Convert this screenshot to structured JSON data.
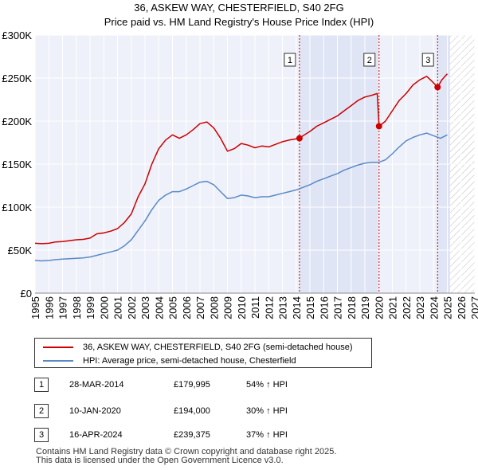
{
  "chart_data": {
    "type": "line",
    "title": "36, ASKEW WAY, CHESTERFIELD, S40 2FG",
    "subtitle": "Price paid vs. HM Land Registry's House Price Index (HPI)",
    "xlim": [
      1995,
      2027
    ],
    "ylim": [
      0,
      300000
    ],
    "x_ticks": [
      "1995",
      "1996",
      "1997",
      "1998",
      "1999",
      "2000",
      "2001",
      "2002",
      "2003",
      "2004",
      "2005",
      "2006",
      "2007",
      "2008",
      "2009",
      "2010",
      "2011",
      "2012",
      "2013",
      "2014",
      "2015",
      "2016",
      "2017",
      "2018",
      "2019",
      "2020",
      "2021",
      "2022",
      "2023",
      "2024",
      "2025",
      "2026",
      "2027"
    ],
    "y_ticks": [
      {
        "value": 0,
        "label": "£0"
      },
      {
        "value": 50000,
        "label": "£50K"
      },
      {
        "value": 100000,
        "label": "£100K"
      },
      {
        "value": 150000,
        "label": "£150K"
      },
      {
        "value": 200000,
        "label": "£200K"
      },
      {
        "value": 250000,
        "label": "£250K"
      },
      {
        "value": 300000,
        "label": "£300K"
      }
    ],
    "grid": true,
    "data_end_year": 2025.2,
    "shaded_ranges": [
      [
        2014.24,
        2020.03
      ],
      [
        2024.29,
        2025.2
      ]
    ],
    "series": [
      {
        "name": "36, ASKEW WAY, CHESTERFIELD, S40 2FG (semi-detached house)",
        "color": "#cc0000",
        "x": [
          1995.0,
          1995.5,
          1996.0,
          1996.5,
          1997.0,
          1997.5,
          1998.0,
          1998.5,
          1999.0,
          1999.5,
          2000.0,
          2000.5,
          2001.0,
          2001.5,
          2002.0,
          2002.5,
          2003.0,
          2003.5,
          2004.0,
          2004.5,
          2005.0,
          2005.5,
          2006.0,
          2006.5,
          2007.0,
          2007.5,
          2008.0,
          2008.5,
          2009.0,
          2009.5,
          2010.0,
          2010.5,
          2011.0,
          2011.5,
          2012.0,
          2012.5,
          2013.0,
          2013.5,
          2014.24,
          2014.5,
          2015.0,
          2015.5,
          2016.0,
          2016.5,
          2017.0,
          2017.5,
          2018.0,
          2018.5,
          2019.0,
          2019.5,
          2019.9,
          2020.03,
          2020.5,
          2021.0,
          2021.5,
          2022.0,
          2022.5,
          2023.0,
          2023.5,
          2023.9,
          2024.29,
          2024.6,
          2025.0
        ],
        "values": [
          58000,
          57500,
          58000,
          59500,
          60000,
          61000,
          62000,
          62500,
          64000,
          69000,
          70000,
          72000,
          75000,
          82000,
          92000,
          112000,
          127000,
          150000,
          168000,
          178000,
          184000,
          180000,
          184000,
          190000,
          197000,
          199000,
          192000,
          180000,
          165000,
          168000,
          174000,
          172000,
          169000,
          171000,
          170000,
          173000,
          176000,
          178000,
          179995,
          183000,
          188000,
          194000,
          198000,
          202000,
          206000,
          212000,
          218000,
          224000,
          228000,
          230000,
          232000,
          194000,
          200000,
          212000,
          224000,
          232000,
          242000,
          248000,
          252000,
          246000,
          239375,
          248000,
          255000
        ]
      },
      {
        "name": "HPI: Average price, semi-detached house, Chesterfield",
        "color": "#5a8ac6",
        "x": [
          1995.0,
          1995.5,
          1996.0,
          1996.5,
          1997.0,
          1997.5,
          1998.0,
          1998.5,
          1999.0,
          1999.5,
          2000.0,
          2000.5,
          2001.0,
          2001.5,
          2002.0,
          2002.5,
          2003.0,
          2003.5,
          2004.0,
          2004.5,
          2005.0,
          2005.5,
          2006.0,
          2006.5,
          2007.0,
          2007.5,
          2008.0,
          2008.5,
          2009.0,
          2009.5,
          2010.0,
          2010.5,
          2011.0,
          2011.5,
          2012.0,
          2012.5,
          2013.0,
          2013.5,
          2014.0,
          2014.5,
          2015.0,
          2015.5,
          2016.0,
          2016.5,
          2017.0,
          2017.5,
          2018.0,
          2018.5,
          2019.0,
          2019.5,
          2020.0,
          2020.5,
          2021.0,
          2021.5,
          2022.0,
          2022.5,
          2023.0,
          2023.5,
          2024.0,
          2024.5,
          2025.0
        ],
        "values": [
          38000,
          37500,
          38000,
          39000,
          39500,
          40000,
          40500,
          41000,
          42000,
          44000,
          46000,
          48000,
          50000,
          55000,
          62000,
          73000,
          84000,
          97000,
          108000,
          114000,
          118000,
          118000,
          121000,
          125000,
          129000,
          130000,
          126000,
          118000,
          110000,
          111000,
          114000,
          113000,
          111000,
          112000,
          112000,
          114000,
          116000,
          118000,
          120000,
          123000,
          126000,
          130000,
          133000,
          136000,
          139000,
          143000,
          146000,
          149000,
          151000,
          152000,
          152000,
          155000,
          162000,
          170000,
          177000,
          181000,
          184000,
          186000,
          183000,
          180000,
          184000
        ]
      }
    ],
    "sales": [
      {
        "label": "1",
        "date": "28-MAR-2014",
        "x": 2014.24,
        "price": "£179,995",
        "value": 179995,
        "hpi": "54% ↑ HPI"
      },
      {
        "label": "2",
        "date": "10-JAN-2020",
        "x": 2020.03,
        "price": "£194,000",
        "value": 194000,
        "hpi": "30% ↑ HPI"
      },
      {
        "label": "3",
        "date": "16-APR-2024",
        "x": 2024.29,
        "price": "£239,375",
        "value": 239375,
        "hpi": "37% ↑ HPI"
      }
    ]
  },
  "legend": {
    "property_label": "36, ASKEW WAY, CHESTERFIELD, S40 2FG (semi-detached house)",
    "hpi_label": "HPI: Average price, semi-detached house, Chesterfield",
    "property_color": "#cc0000",
    "hpi_color": "#5a8ac6"
  },
  "footer": {
    "line1": "Contains HM Land Registry data © Crown copyright and database right 2025.",
    "line2": "This data is licensed under the Open Government Licence v3.0."
  }
}
